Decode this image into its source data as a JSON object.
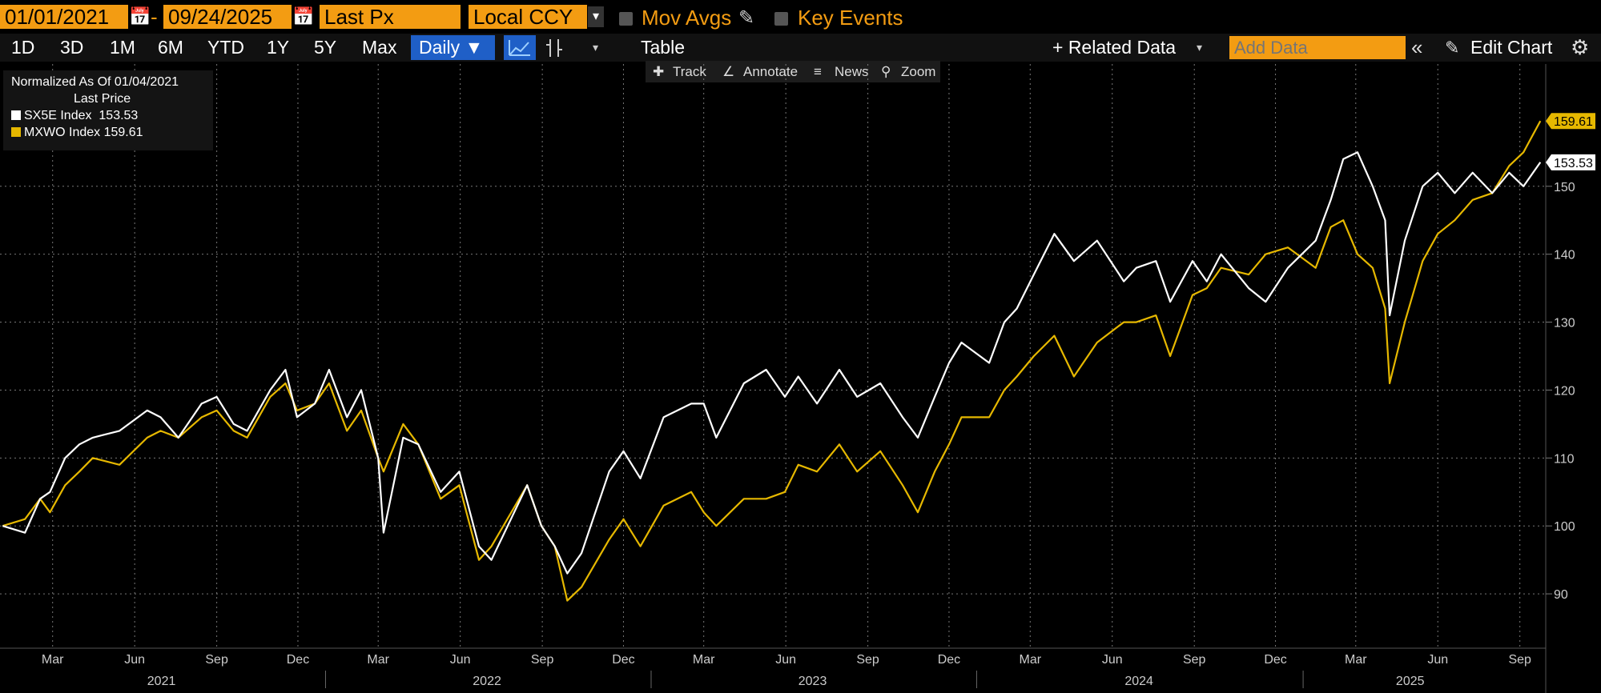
{
  "toolbar": {
    "start_date": "01/01/2021",
    "date_sep": "-",
    "end_date": "09/24/2025",
    "field": "Last Px",
    "currency": "Local CCY",
    "mov_avgs": "Mov Avgs",
    "key_events": "Key Events"
  },
  "periods": [
    "1D",
    "3D",
    "1M",
    "6M",
    "YTD",
    "1Y",
    "5Y",
    "Max"
  ],
  "frequency": "Daily ▼",
  "table_label": "Table",
  "related_data": "+ Related Data",
  "add_data_placeholder": "Add Data",
  "edit_chart": "Edit Chart",
  "subtoolbar": {
    "track": "Track",
    "annotate": "Annotate",
    "news": "News",
    "zoom": "Zoom"
  },
  "legend": {
    "line1": "Normalized As Of 01/04/2021",
    "line2": "Last Price",
    "entries": [
      {
        "name": "SX5E Index",
        "value": "153.53",
        "color": "#ffffff"
      },
      {
        "name": "MXWO Index",
        "value": "159.61",
        "color": "#e6b800"
      }
    ]
  },
  "chart_data": {
    "type": "line",
    "yaxis_side": "right",
    "ylim": [
      82,
      168
    ],
    "yticks": [
      90,
      100,
      110,
      120,
      130,
      140,
      150
    ],
    "xlim": [
      "2021-01-01",
      "2025-09-30"
    ],
    "month_ticks": [
      [
        "2021-03",
        "Mar"
      ],
      [
        "2021-06",
        "Jun"
      ],
      [
        "2021-09",
        "Sep"
      ],
      [
        "2021-12",
        "Dec"
      ],
      [
        "2022-03",
        "Mar"
      ],
      [
        "2022-06",
        "Jun"
      ],
      [
        "2022-09",
        "Sep"
      ],
      [
        "2022-12",
        "Dec"
      ],
      [
        "2023-03",
        "Mar"
      ],
      [
        "2023-06",
        "Jun"
      ],
      [
        "2023-09",
        "Sep"
      ],
      [
        "2023-12",
        "Dec"
      ],
      [
        "2024-03",
        "Mar"
      ],
      [
        "2024-06",
        "Jun"
      ],
      [
        "2024-09",
        "Sep"
      ],
      [
        "2024-12",
        "Dec"
      ],
      [
        "2025-03",
        "Mar"
      ],
      [
        "2025-06",
        "Jun"
      ],
      [
        "2025-09",
        "Sep"
      ]
    ],
    "year_labels": [
      [
        "2021-07",
        "2021"
      ],
      [
        "2022-07",
        "2022"
      ],
      [
        "2023-07",
        "2023"
      ],
      [
        "2024-07",
        "2024"
      ],
      [
        "2025-05",
        "2025"
      ]
    ],
    "series": [
      {
        "name": "SX5E Index",
        "color": "#ffffff",
        "last": 153.53,
        "points": [
          [
            "2021-01-04",
            100
          ],
          [
            "2021-01-29",
            99
          ],
          [
            "2021-02-15",
            104
          ],
          [
            "2021-02-26",
            105
          ],
          [
            "2021-03-15",
            110
          ],
          [
            "2021-03-31",
            112
          ],
          [
            "2021-04-15",
            113
          ],
          [
            "2021-05-15",
            114
          ],
          [
            "2021-06-15",
            117
          ],
          [
            "2021-06-30",
            116
          ],
          [
            "2021-07-20",
            113
          ],
          [
            "2021-08-15",
            118
          ],
          [
            "2021-09-01",
            119
          ],
          [
            "2021-09-20",
            115
          ],
          [
            "2021-10-05",
            114
          ],
          [
            "2021-10-31",
            120
          ],
          [
            "2021-11-17",
            123
          ],
          [
            "2021-11-30",
            116
          ],
          [
            "2021-12-20",
            118
          ],
          [
            "2022-01-05",
            123
          ],
          [
            "2022-01-25",
            116
          ],
          [
            "2022-02-10",
            120
          ],
          [
            "2022-03-01",
            110
          ],
          [
            "2022-03-07",
            99
          ],
          [
            "2022-03-29",
            113
          ],
          [
            "2022-04-15",
            112
          ],
          [
            "2022-05-10",
            105
          ],
          [
            "2022-05-31",
            108
          ],
          [
            "2022-06-22",
            97
          ],
          [
            "2022-07-06",
            95
          ],
          [
            "2022-08-15",
            106
          ],
          [
            "2022-08-31",
            100
          ],
          [
            "2022-09-15",
            97
          ],
          [
            "2022-09-29",
            93
          ],
          [
            "2022-10-15",
            96
          ],
          [
            "2022-11-15",
            108
          ],
          [
            "2022-12-01",
            111
          ],
          [
            "2022-12-20",
            107
          ],
          [
            "2023-01-15",
            116
          ],
          [
            "2023-02-15",
            118
          ],
          [
            "2023-03-01",
            118
          ],
          [
            "2023-03-15",
            113
          ],
          [
            "2023-04-15",
            121
          ],
          [
            "2023-05-10",
            123
          ],
          [
            "2023-05-31",
            119
          ],
          [
            "2023-06-15",
            122
          ],
          [
            "2023-07-06",
            118
          ],
          [
            "2023-07-31",
            123
          ],
          [
            "2023-08-20",
            119
          ],
          [
            "2023-09-15",
            121
          ],
          [
            "2023-10-10",
            116
          ],
          [
            "2023-10-27",
            113
          ],
          [
            "2023-11-15",
            119
          ],
          [
            "2023-12-01",
            124
          ],
          [
            "2023-12-15",
            127
          ],
          [
            "2024-01-15",
            124
          ],
          [
            "2024-02-01",
            130
          ],
          [
            "2024-02-15",
            132
          ],
          [
            "2024-03-05",
            137
          ],
          [
            "2024-03-28",
            143
          ],
          [
            "2024-04-19",
            139
          ],
          [
            "2024-05-15",
            142
          ],
          [
            "2024-06-14",
            136
          ],
          [
            "2024-06-28",
            138
          ],
          [
            "2024-07-20",
            139
          ],
          [
            "2024-08-05",
            133
          ],
          [
            "2024-08-30",
            139
          ],
          [
            "2024-09-15",
            136
          ],
          [
            "2024-10-01",
            140
          ],
          [
            "2024-11-01",
            135
          ],
          [
            "2024-11-20",
            133
          ],
          [
            "2024-12-15",
            138
          ],
          [
            "2025-01-15",
            142
          ],
          [
            "2025-02-01",
            148
          ],
          [
            "2025-02-15",
            154
          ],
          [
            "2025-03-03",
            155
          ],
          [
            "2025-03-20",
            150
          ],
          [
            "2025-04-03",
            145
          ],
          [
            "2025-04-08",
            131
          ],
          [
            "2025-04-25",
            142
          ],
          [
            "2025-05-15",
            150
          ],
          [
            "2025-06-01",
            152
          ],
          [
            "2025-06-20",
            149
          ],
          [
            "2025-07-10",
            152
          ],
          [
            "2025-08-01",
            149
          ],
          [
            "2025-08-20",
            152
          ],
          [
            "2025-09-05",
            150
          ],
          [
            "2025-09-24",
            153.53
          ]
        ]
      },
      {
        "name": "MXWO Index",
        "color": "#e6b800",
        "last": 159.61,
        "points": [
          [
            "2021-01-04",
            100
          ],
          [
            "2021-01-29",
            101
          ],
          [
            "2021-02-15",
            104
          ],
          [
            "2021-02-26",
            102
          ],
          [
            "2021-03-15",
            106
          ],
          [
            "2021-03-31",
            108
          ],
          [
            "2021-04-15",
            110
          ],
          [
            "2021-05-15",
            109
          ],
          [
            "2021-06-15",
            113
          ],
          [
            "2021-06-30",
            114
          ],
          [
            "2021-07-20",
            113
          ],
          [
            "2021-08-15",
            116
          ],
          [
            "2021-09-01",
            117
          ],
          [
            "2021-09-20",
            114
          ],
          [
            "2021-10-05",
            113
          ],
          [
            "2021-10-31",
            119
          ],
          [
            "2021-11-17",
            121
          ],
          [
            "2021-11-30",
            117
          ],
          [
            "2021-12-20",
            118
          ],
          [
            "2022-01-05",
            121
          ],
          [
            "2022-01-25",
            114
          ],
          [
            "2022-02-10",
            117
          ],
          [
            "2022-03-01",
            110
          ],
          [
            "2022-03-07",
            108
          ],
          [
            "2022-03-29",
            115
          ],
          [
            "2022-04-15",
            112
          ],
          [
            "2022-05-10",
            104
          ],
          [
            "2022-05-31",
            106
          ],
          [
            "2022-06-22",
            95
          ],
          [
            "2022-07-06",
            97
          ],
          [
            "2022-08-15",
            106
          ],
          [
            "2022-08-31",
            100
          ],
          [
            "2022-09-15",
            97
          ],
          [
            "2022-09-29",
            89
          ],
          [
            "2022-10-15",
            91
          ],
          [
            "2022-11-15",
            98
          ],
          [
            "2022-12-01",
            101
          ],
          [
            "2022-12-20",
            97
          ],
          [
            "2023-01-15",
            103
          ],
          [
            "2023-02-15",
            105
          ],
          [
            "2023-03-01",
            102
          ],
          [
            "2023-03-15",
            100
          ],
          [
            "2023-04-15",
            104
          ],
          [
            "2023-05-10",
            104
          ],
          [
            "2023-05-31",
            105
          ],
          [
            "2023-06-15",
            109
          ],
          [
            "2023-07-06",
            108
          ],
          [
            "2023-07-31",
            112
          ],
          [
            "2023-08-20",
            108
          ],
          [
            "2023-09-15",
            111
          ],
          [
            "2023-10-10",
            106
          ],
          [
            "2023-10-27",
            102
          ],
          [
            "2023-11-15",
            108
          ],
          [
            "2023-12-01",
            112
          ],
          [
            "2023-12-15",
            116
          ],
          [
            "2024-01-15",
            116
          ],
          [
            "2024-02-01",
            120
          ],
          [
            "2024-02-15",
            122
          ],
          [
            "2024-03-05",
            125
          ],
          [
            "2024-03-28",
            128
          ],
          [
            "2024-04-19",
            122
          ],
          [
            "2024-05-15",
            127
          ],
          [
            "2024-06-14",
            130
          ],
          [
            "2024-06-28",
            130
          ],
          [
            "2024-07-20",
            131
          ],
          [
            "2024-08-05",
            125
          ],
          [
            "2024-08-30",
            134
          ],
          [
            "2024-09-15",
            135
          ],
          [
            "2024-10-01",
            138
          ],
          [
            "2024-11-01",
            137
          ],
          [
            "2024-11-20",
            140
          ],
          [
            "2024-12-15",
            141
          ],
          [
            "2025-01-15",
            138
          ],
          [
            "2025-02-01",
            144
          ],
          [
            "2025-02-15",
            145
          ],
          [
            "2025-03-03",
            140
          ],
          [
            "2025-03-20",
            138
          ],
          [
            "2025-04-03",
            132
          ],
          [
            "2025-04-08",
            121
          ],
          [
            "2025-04-25",
            130
          ],
          [
            "2025-05-15",
            139
          ],
          [
            "2025-06-01",
            143
          ],
          [
            "2025-06-20",
            145
          ],
          [
            "2025-07-10",
            148
          ],
          [
            "2025-08-01",
            149
          ],
          [
            "2025-08-20",
            153
          ],
          [
            "2025-09-05",
            155
          ],
          [
            "2025-09-24",
            159.61
          ]
        ]
      }
    ]
  }
}
